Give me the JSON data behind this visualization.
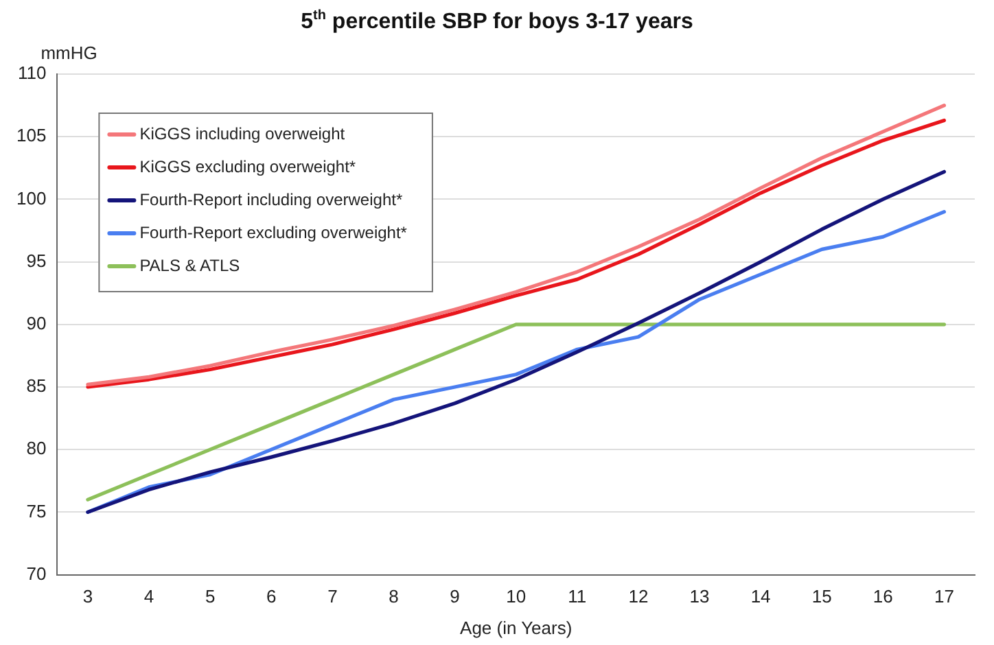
{
  "chart_data": {
    "type": "line",
    "title": "5$^{th}$ percentile SBP for boys 3-17 years",
    "xlabel": "Age (in Years)",
    "ylabel": "mmHG",
    "categories": [
      "3",
      "4",
      "5",
      "6",
      "7",
      "8",
      "9",
      "10",
      "11",
      "12",
      "13",
      "14",
      "15",
      "16",
      "17"
    ],
    "series": [
      {
        "name": "KiGGS including overweight",
        "color": "#f4777a",
        "values": [
          85.2,
          85.8,
          86.7,
          87.8,
          88.8,
          89.9,
          91.2,
          92.6,
          94.2,
          96.2,
          98.4,
          100.9,
          103.3,
          105.4,
          107.5
        ]
      },
      {
        "name": "KiGGS excluding overweight*",
        "color": "#e8161c",
        "values": [
          85,
          85.6,
          86.4,
          87.4,
          88.4,
          89.6,
          90.9,
          92.3,
          93.6,
          95.6,
          98,
          100.5,
          102.7,
          104.7,
          106.3
        ]
      },
      {
        "name": "Fourth-Report including overweight*",
        "color": "#14147a",
        "values": [
          75,
          76.8,
          78.2,
          79.4,
          80.7,
          82.1,
          83.7,
          85.6,
          87.8,
          90.1,
          92.5,
          95,
          97.6,
          100,
          102.2
        ]
      },
      {
        "name": "Fourth-Report excluding overweight*",
        "color": "#4a7ef0",
        "values": [
          75,
          77,
          78,
          80,
          82,
          84,
          85,
          86,
          88,
          89,
          92,
          94,
          96,
          97,
          99
        ]
      },
      {
        "name": "PALS & ATLS",
        "color": "#8dc05a",
        "values": [
          76,
          78,
          80,
          82,
          84,
          86,
          88,
          90,
          90,
          90,
          90,
          90,
          90,
          90,
          90
        ]
      }
    ],
    "ylim": [
      70,
      110
    ],
    "yticks": [
      70,
      75,
      80,
      85,
      90,
      95,
      100,
      105,
      110
    ],
    "grid": "y",
    "legend": "top left",
    "marker": "none",
    "line_style": "solid"
  }
}
